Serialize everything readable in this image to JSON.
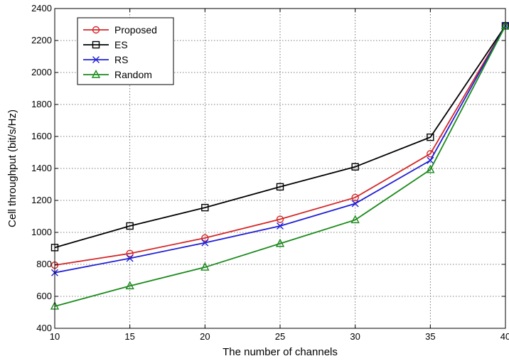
{
  "chart_data": {
    "type": "line",
    "title": "",
    "xlabel": "The number of channels",
    "ylabel": "Cell throughput (bit/s/Hz)",
    "x": [
      10,
      15,
      20,
      25,
      30,
      35,
      40
    ],
    "xlim": [
      10,
      40
    ],
    "ylim": [
      400,
      2400
    ],
    "xticks": [
      "10",
      "15",
      "20",
      "25",
      "30",
      "35",
      "40"
    ],
    "yticks": [
      "400",
      "600",
      "800",
      "1000",
      "1200",
      "1400",
      "1600",
      "1800",
      "2000",
      "2200",
      "2400"
    ],
    "grid": true,
    "legend_position": "top-left",
    "series": [
      {
        "name": "Proposed",
        "color": "#d62728",
        "marker": "circle",
        "values": [
          795,
          868,
          965,
          1082,
          1218,
          1492,
          2292
        ]
      },
      {
        "name": "ES",
        "color": "#000000",
        "marker": "square",
        "values": [
          905,
          1040,
          1155,
          1285,
          1410,
          1595,
          2292
        ]
      },
      {
        "name": "RS",
        "color": "#1f1fd6",
        "marker": "x",
        "values": [
          748,
          838,
          935,
          1040,
          1180,
          1450,
          2292
        ]
      },
      {
        "name": "Random",
        "color": "#1a8a1a",
        "marker": "triangle",
        "values": [
          538,
          665,
          782,
          930,
          1078,
          1392,
          2292
        ]
      }
    ]
  }
}
